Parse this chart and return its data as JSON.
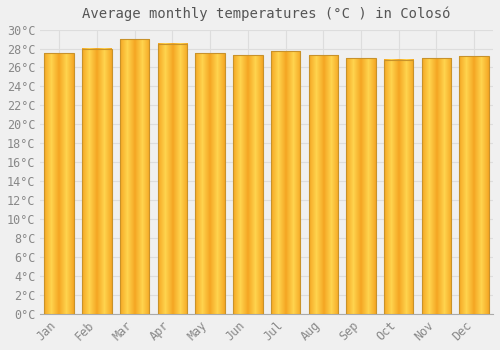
{
  "title": "Average monthly temperatures (°C ) in Colosó",
  "categories": [
    "Jan",
    "Feb",
    "Mar",
    "Apr",
    "May",
    "Jun",
    "Jul",
    "Aug",
    "Sep",
    "Oct",
    "Nov",
    "Dec"
  ],
  "values": [
    27.5,
    28.0,
    29.0,
    28.5,
    27.5,
    27.3,
    27.7,
    27.3,
    27.0,
    26.8,
    27.0,
    27.2
  ],
  "bar_color_center": "#FFD44E",
  "bar_color_edge": "#F5A623",
  "bar_border_color": "#C8922A",
  "background_color": "#F0F0F0",
  "grid_color": "#DDDDDD",
  "text_color": "#888888",
  "ylim": [
    0,
    30
  ],
  "ytick_step": 2,
  "title_fontsize": 10,
  "tick_fontsize": 8.5,
  "bar_width": 0.78
}
